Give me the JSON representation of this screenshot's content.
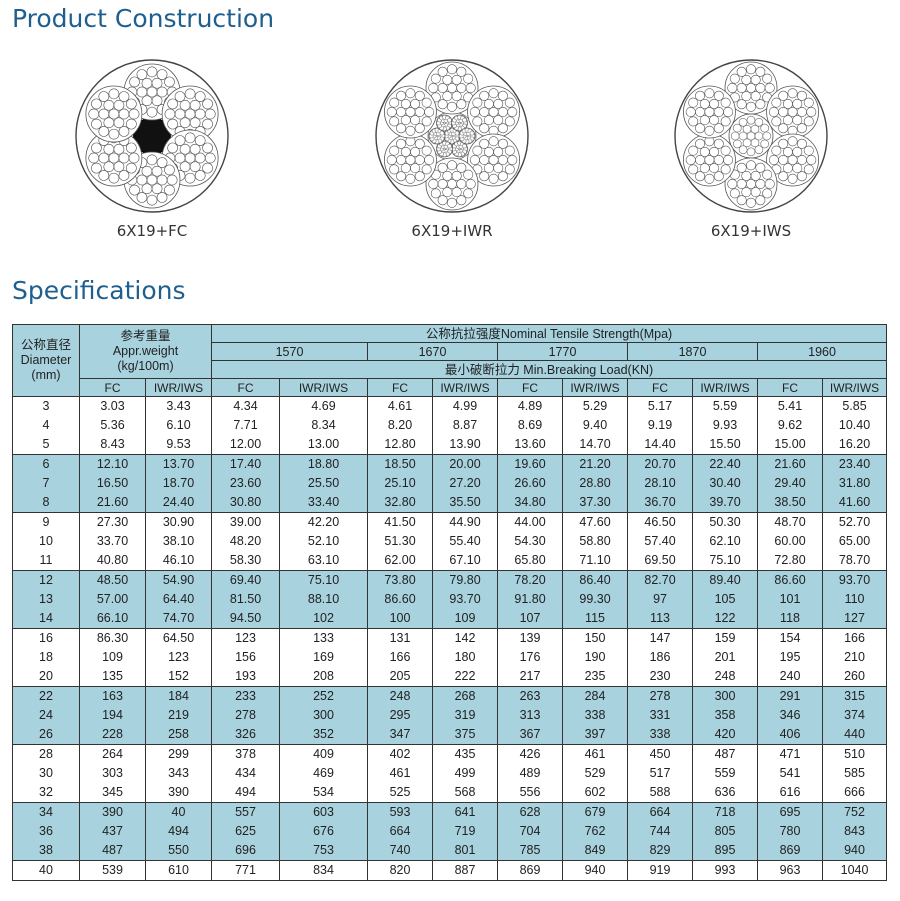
{
  "construction_title": "Product Construction",
  "specifications_title": "Specifications",
  "constructions": [
    {
      "label": "6X19+FC",
      "core": "fiber"
    },
    {
      "label": "6X19+IWR",
      "core": "wire-rope"
    },
    {
      "label": "6X19+IWS",
      "core": "wire-strand"
    }
  ],
  "table": {
    "diameter_header": {
      "cn": "公称直径",
      "en": "Diameter",
      "unit": "(mm)"
    },
    "weight_header": {
      "cn": "参考重量",
      "en": "Appr.weight",
      "unit": "(kg/100m)"
    },
    "strength_header": "公称抗拉强度Nominal Tensile Strength(Mpa)",
    "strengths": [
      "1570",
      "1670",
      "1770",
      "1870",
      "1960"
    ],
    "load_header": "最小破断拉力 Min.Breaking Load(KN)",
    "sub_fc": "FC",
    "sub_iwr": "IWR/IWS",
    "rows": [
      [
        "3",
        "3.03",
        "3.43",
        "4.34",
        "4.69",
        "4.61",
        "4.99",
        "4.89",
        "5.29",
        "5.17",
        "5.59",
        "5.41",
        "5.85"
      ],
      [
        "4",
        "5.36",
        "6.10",
        "7.71",
        "8.34",
        "8.20",
        "8.87",
        "8.69",
        "9.40",
        "9.19",
        "9.93",
        "9.62",
        "10.40"
      ],
      [
        "5",
        "8.43",
        "9.53",
        "12.00",
        "13.00",
        "12.80",
        "13.90",
        "13.60",
        "14.70",
        "14.40",
        "15.50",
        "15.00",
        "16.20"
      ],
      [
        "6",
        "12.10",
        "13.70",
        "17.40",
        "18.80",
        "18.50",
        "20.00",
        "19.60",
        "21.20",
        "20.70",
        "22.40",
        "21.60",
        "23.40"
      ],
      [
        "7",
        "16.50",
        "18.70",
        "23.60",
        "25.50",
        "25.10",
        "27.20",
        "26.60",
        "28.80",
        "28.10",
        "30.40",
        "29.40",
        "31.80"
      ],
      [
        "8",
        "21.60",
        "24.40",
        "30.80",
        "33.40",
        "32.80",
        "35.50",
        "34.80",
        "37.30",
        "36.70",
        "39.70",
        "38.50",
        "41.60"
      ],
      [
        "9",
        "27.30",
        "30.90",
        "39.00",
        "42.20",
        "41.50",
        "44.90",
        "44.00",
        "47.60",
        "46.50",
        "50.30",
        "48.70",
        "52.70"
      ],
      [
        "10",
        "33.70",
        "38.10",
        "48.20",
        "52.10",
        "51.30",
        "55.40",
        "54.30",
        "58.80",
        "57.40",
        "62.10",
        "60.00",
        "65.00"
      ],
      [
        "11",
        "40.80",
        "46.10",
        "58.30",
        "63.10",
        "62.00",
        "67.10",
        "65.80",
        "71.10",
        "69.50",
        "75.10",
        "72.80",
        "78.70"
      ],
      [
        "12",
        "48.50",
        "54.90",
        "69.40",
        "75.10",
        "73.80",
        "79.80",
        "78.20",
        "86.40",
        "82.70",
        "89.40",
        "86.60",
        "93.70"
      ],
      [
        "13",
        "57.00",
        "64.40",
        "81.50",
        "88.10",
        "86.60",
        "93.70",
        "91.80",
        "99.30",
        "97",
        "105",
        "101",
        "110"
      ],
      [
        "14",
        "66.10",
        "74.70",
        "94.50",
        "102",
        "100",
        "109",
        "107",
        "115",
        "113",
        "122",
        "118",
        "127"
      ],
      [
        "16",
        "86.30",
        "64.50",
        "123",
        "133",
        "131",
        "142",
        "139",
        "150",
        "147",
        "159",
        "154",
        "166"
      ],
      [
        "18",
        "109",
        "123",
        "156",
        "169",
        "166",
        "180",
        "176",
        "190",
        "186",
        "201",
        "195",
        "210"
      ],
      [
        "20",
        "135",
        "152",
        "193",
        "208",
        "205",
        "222",
        "217",
        "235",
        "230",
        "248",
        "240",
        "260"
      ],
      [
        "22",
        "163",
        "184",
        "233",
        "252",
        "248",
        "268",
        "263",
        "284",
        "278",
        "300",
        "291",
        "315"
      ],
      [
        "24",
        "194",
        "219",
        "278",
        "300",
        "295",
        "319",
        "313",
        "338",
        "331",
        "358",
        "346",
        "374"
      ],
      [
        "26",
        "228",
        "258",
        "326",
        "352",
        "347",
        "375",
        "367",
        "397",
        "338",
        "420",
        "406",
        "440"
      ],
      [
        "28",
        "264",
        "299",
        "378",
        "409",
        "402",
        "435",
        "426",
        "461",
        "450",
        "487",
        "471",
        "510"
      ],
      [
        "30",
        "303",
        "343",
        "434",
        "469",
        "461",
        "499",
        "489",
        "529",
        "517",
        "559",
        "541",
        "585"
      ],
      [
        "32",
        "345",
        "390",
        "494",
        "534",
        "525",
        "568",
        "556",
        "602",
        "588",
        "636",
        "616",
        "666"
      ],
      [
        "34",
        "390",
        "40",
        "557",
        "603",
        "593",
        "641",
        "628",
        "679",
        "664",
        "718",
        "695",
        "752"
      ],
      [
        "36",
        "437",
        "494",
        "625",
        "676",
        "664",
        "719",
        "704",
        "762",
        "744",
        "805",
        "780",
        "843"
      ],
      [
        "38",
        "487",
        "550",
        "696",
        "753",
        "740",
        "801",
        "785",
        "849",
        "829",
        "895",
        "869",
        "940"
      ],
      [
        "40",
        "539",
        "610",
        "771",
        "834",
        "820",
        "887",
        "869",
        "940",
        "919",
        "993",
        "963",
        "1040"
      ]
    ]
  }
}
